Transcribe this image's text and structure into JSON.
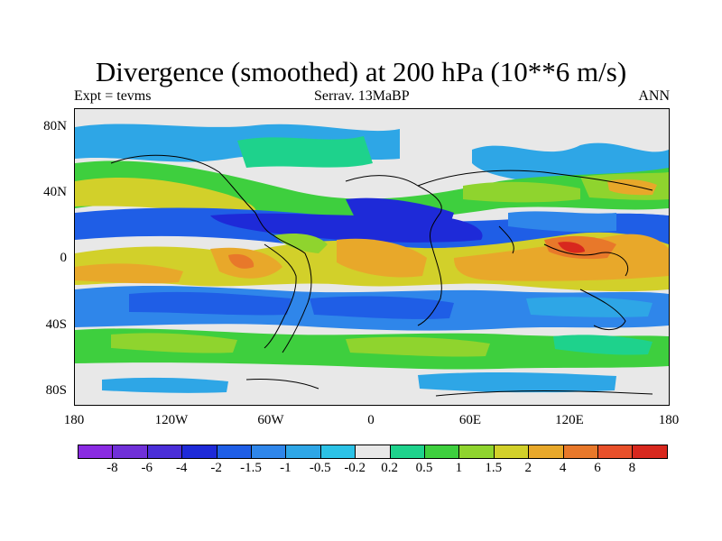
{
  "title": "Divergence (smoothed) at 200 hPa (10**6 m/s)",
  "subtitle_left": "Expt = tevms",
  "subtitle_center": "Serrav.  13MaBP",
  "subtitle_right": "ANN",
  "y_ticks": [
    "80N",
    "40N",
    "0",
    "40S",
    "80S"
  ],
  "x_ticks": [
    "180",
    "120W",
    "60W",
    "0",
    "60E",
    "120E",
    "180"
  ],
  "colorbar": {
    "colors": [
      "#8a2be2",
      "#7030d8",
      "#4a2ed8",
      "#1e2ad8",
      "#1f5ee6",
      "#2f86ea",
      "#2ea6e6",
      "#2cc2e6",
      "#e8e8e8",
      "#1ed28c",
      "#3ecf3e",
      "#8fd42e",
      "#d2d02a",
      "#e8a82a",
      "#e8782a",
      "#e8502a",
      "#d8281e"
    ],
    "labels": [
      "-8",
      "-6",
      "-4",
      "-2",
      "-1.5",
      "-1",
      "-0.5",
      "-0.2",
      "0.2",
      "0.5",
      "1",
      "1.5",
      "2",
      "4",
      "6",
      "8"
    ]
  }
}
